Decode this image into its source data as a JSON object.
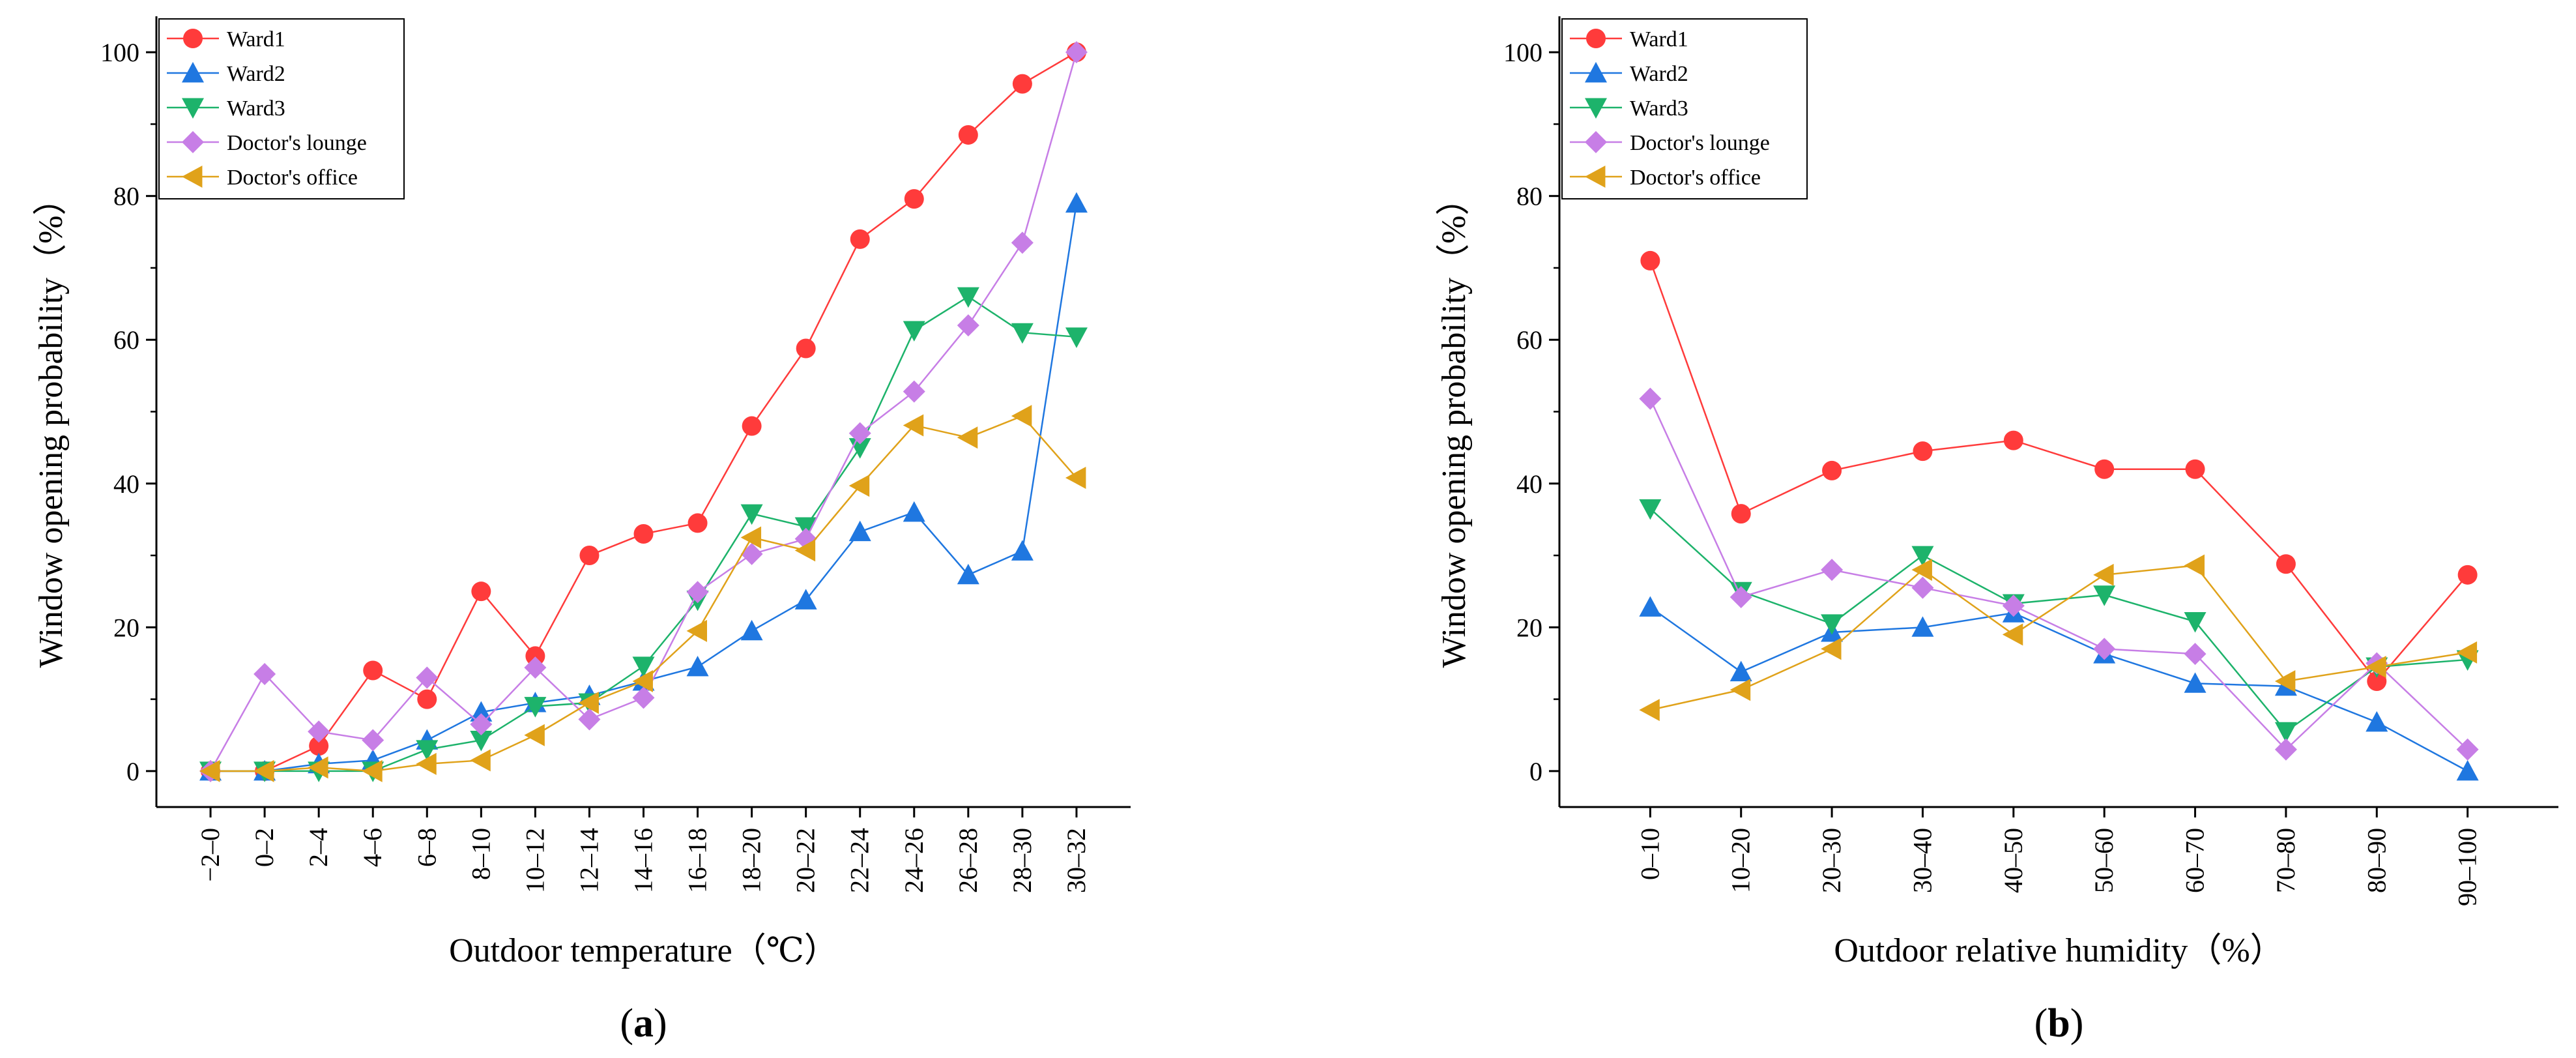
{
  "chart_data": [
    {
      "type": "line",
      "panel_label_open": "(",
      "panel_label_letter": "a",
      "panel_label_close": ")",
      "xlabel": "Outdoor temperature（℃）",
      "ylabel": "Window opening probability（%）",
      "ylim": [
        -5,
        105
      ],
      "yticks": [
        0,
        20,
        40,
        60,
        80,
        100
      ],
      "legend_position": "top-left",
      "categories": [
        "−2–0",
        "0–2",
        "2–4",
        "4–6",
        "6–8",
        "8–10",
        "10–12",
        "12–14",
        "14–16",
        "16–18",
        "18–20",
        "20–22",
        "22–24",
        "24–26",
        "26–28",
        "28–30",
        "30–32"
      ],
      "series": [
        {
          "name": "Ward1",
          "color": "#ff3b3b",
          "marker": "circle",
          "values": [
            0,
            0,
            3.5,
            14,
            10,
            25,
            16,
            30,
            33,
            34.5,
            48,
            58.8,
            74,
            79.6,
            88.5,
            95.6,
            100
          ]
        },
        {
          "name": "Ward2",
          "color": "#1f77e0",
          "marker": "triangle-up",
          "values": [
            0,
            0,
            1,
            1.5,
            4.3,
            8.2,
            9.5,
            10.5,
            12.5,
            14.5,
            19.5,
            23.8,
            33.3,
            36,
            27.3,
            30.6,
            79
          ]
        },
        {
          "name": "Ward3",
          "color": "#1db36b",
          "marker": "triangle-down",
          "values": [
            0,
            0,
            0,
            0,
            3,
            4.3,
            9,
            9.5,
            14.6,
            23.8,
            35.8,
            34,
            45,
            61.3,
            66,
            61,
            60.4
          ]
        },
        {
          "name": "Doctor's lounge",
          "color": "#c77ee6",
          "marker": "diamond",
          "values": [
            0,
            13.5,
            5.5,
            4.3,
            13,
            6.5,
            14.4,
            7.2,
            10.2,
            24.9,
            30.2,
            32.3,
            47,
            52.8,
            62,
            73.5,
            100
          ]
        },
        {
          "name": "Doctor's office",
          "color": "#e0a21a",
          "marker": "triangle-left",
          "values": [
            0,
            0,
            0.5,
            0,
            1,
            1.5,
            5,
            9.5,
            12.5,
            19.5,
            32.5,
            30.7,
            39.7,
            48.1,
            46.4,
            49.4,
            40.8
          ]
        }
      ]
    },
    {
      "type": "line",
      "panel_label_open": "(",
      "panel_label_letter": "b",
      "panel_label_close": ")",
      "xlabel": "Outdoor relative humidity（%）",
      "ylabel": "Window opening probability（%）",
      "ylim": [
        -5,
        105
      ],
      "yticks": [
        0,
        20,
        40,
        60,
        80,
        100
      ],
      "legend_position": "top-left",
      "categories": [
        "0–10",
        "10–20",
        "20–30",
        "30–40",
        "40–50",
        "50–60",
        "60–70",
        "70–80",
        "80–90",
        "90–100"
      ],
      "series": [
        {
          "name": "Ward1",
          "color": "#ff3b3b",
          "marker": "circle",
          "values": [
            71,
            35.8,
            41.8,
            44.5,
            46,
            42,
            42,
            28.8,
            12.5,
            27.3
          ]
        },
        {
          "name": "Ward2",
          "color": "#1f77e0",
          "marker": "triangle-up",
          "values": [
            22.8,
            13.8,
            19.3,
            20,
            22,
            16.3,
            12.2,
            11.8,
            6.8,
            0
          ]
        },
        {
          "name": "Ward3",
          "color": "#1db36b",
          "marker": "triangle-down",
          "values": [
            36.5,
            25,
            20.5,
            30,
            23.3,
            24.5,
            20.8,
            5.5,
            14.5,
            15.5
          ]
        },
        {
          "name": "Doctor's lounge",
          "color": "#c77ee6",
          "marker": "diamond",
          "values": [
            51.8,
            24.2,
            28,
            25.5,
            23,
            17,
            16.3,
            3,
            15,
            3
          ]
        },
        {
          "name": "Doctor's office",
          "color": "#e0a21a",
          "marker": "triangle-left",
          "values": [
            8.5,
            11.3,
            17,
            28,
            19,
            27.3,
            28.6,
            12.5,
            14.5,
            16.5
          ]
        }
      ]
    }
  ]
}
